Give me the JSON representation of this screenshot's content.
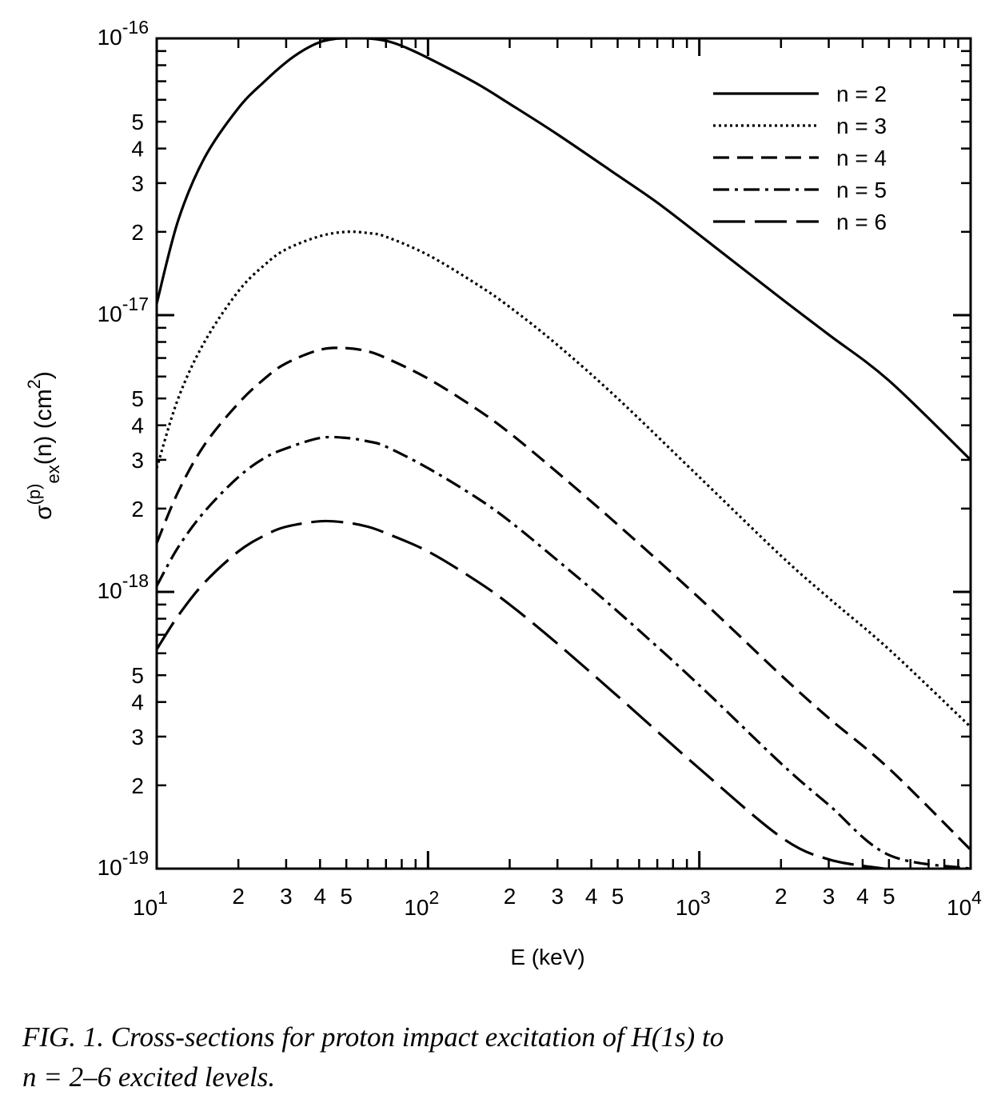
{
  "chart_data": {
    "type": "line",
    "xscale": "log",
    "yscale": "log",
    "xlim": [
      10,
      10000
    ],
    "ylim": [
      1e-19,
      1e-16
    ],
    "xlabel": "E (keV)",
    "ylabel": "σ(p)ex(n) (cm2)",
    "grid": false,
    "legend_position": "top-right",
    "x_major_ticks": [
      {
        "value": 10,
        "base": "10",
        "exp": "1"
      },
      {
        "value": 100,
        "base": "10",
        "exp": "2"
      },
      {
        "value": 1000,
        "base": "10",
        "exp": "3"
      },
      {
        "value": 10000,
        "base": "10",
        "exp": "4"
      }
    ],
    "x_minor_labels": [
      "2",
      "3",
      "4",
      "5"
    ],
    "y_major_ticks": [
      {
        "value": 1e-16,
        "base": "10",
        "exp": "-16"
      },
      {
        "value": 1e-17,
        "base": "10",
        "exp": "-17"
      },
      {
        "value": 1e-18,
        "base": "10",
        "exp": "-18"
      },
      {
        "value": 1e-19,
        "base": "10",
        "exp": "-19"
      }
    ],
    "y_minor_labels": [
      "2",
      "3",
      "4",
      "5"
    ],
    "series": [
      {
        "name": "n = 2",
        "dash": "solid",
        "x": [
          10,
          12,
          15,
          20,
          25,
          30,
          35,
          40,
          45,
          50,
          60,
          70,
          80,
          100,
          150,
          200,
          300,
          500,
          700,
          1000,
          2000,
          3000,
          5000,
          10000
        ],
        "y": [
          1.1e-17,
          2.2e-17,
          3.7e-17,
          5.6e-17,
          7e-17,
          8.2e-17,
          9.1e-17,
          9.7e-17,
          9.95e-17,
          1e-16,
          1e-16,
          9.8e-17,
          9.4e-17,
          8.5e-17,
          6.9e-17,
          5.8e-17,
          4.5e-17,
          3.2e-17,
          2.55e-17,
          1.95e-17,
          1.15e-17,
          8.5e-18,
          5.8e-18,
          3e-18
        ]
      },
      {
        "name": "n = 3",
        "dash": "dotted",
        "x": [
          10,
          12,
          15,
          20,
          25,
          30,
          40,
          50,
          60,
          70,
          100,
          150,
          200,
          300,
          500,
          1000,
          2000,
          3000,
          5000,
          10000
        ],
        "y": [
          2.8e-18,
          5e-18,
          8e-18,
          1.22e-17,
          1.52e-17,
          1.73e-17,
          1.93e-17,
          2e-17,
          1.98e-17,
          1.92e-17,
          1.65e-17,
          1.3e-17,
          1.07e-17,
          7.8e-18,
          5e-18,
          2.6e-18,
          1.35e-18,
          9.5e-19,
          6.2e-19,
          3.25e-19
        ]
      },
      {
        "name": "n = 4",
        "dash": "dashed",
        "x": [
          10,
          12,
          15,
          20,
          25,
          30,
          40,
          50,
          60,
          70,
          100,
          150,
          200,
          300,
          500,
          1000,
          2000,
          3000,
          5000,
          10000
        ],
        "y": [
          1.5e-18,
          2.3e-18,
          3.4e-18,
          4.8e-18,
          5.9e-18,
          6.7e-18,
          7.5e-18,
          7.6e-18,
          7.4e-18,
          7e-18,
          5.9e-18,
          4.6e-18,
          3.75e-18,
          2.7e-18,
          1.75e-18,
          9.5e-19,
          5e-19,
          3.5e-19,
          2.3e-19,
          1.17e-19
        ]
      },
      {
        "name": "n = 5",
        "dash": "dash-dot",
        "x": [
          10,
          12,
          15,
          20,
          25,
          30,
          40,
          50,
          60,
          70,
          100,
          150,
          200,
          300,
          500,
          1000,
          2000,
          3000,
          5000,
          10000
        ],
        "y": [
          1.05e-18,
          1.45e-18,
          1.95e-18,
          2.6e-18,
          3.05e-18,
          3.3e-18,
          3.6e-18,
          3.6e-18,
          3.5e-18,
          3.35e-18,
          2.8e-18,
          2.2e-18,
          1.8e-18,
          1.3e-18,
          8.5e-19,
          4.6e-19,
          2.4e-19,
          1.7e-19,
          1.12e-19,
          1e-19
        ]
      },
      {
        "name": "n = 6",
        "dash": "long-dash",
        "x": [
          10,
          12,
          15,
          20,
          25,
          30,
          40,
          50,
          60,
          70,
          100,
          150,
          200,
          300,
          500,
          1000,
          2000,
          3000,
          4800
        ],
        "y": [
          6.2e-19,
          8.2e-19,
          1.08e-18,
          1.4e-18,
          1.6e-18,
          1.72e-18,
          1.8e-18,
          1.78e-18,
          1.72e-18,
          1.63e-18,
          1.4e-18,
          1.1e-18,
          9e-19,
          6.5e-19,
          4.2e-19,
          2.3e-19,
          1.3e-19,
          1.08e-19,
          1e-19
        ]
      }
    ]
  },
  "caption": {
    "line1": "FIG. 1.  Cross-sections for proton impact excitation of H(1s) to",
    "line2": "n = 2–6 excited levels."
  }
}
